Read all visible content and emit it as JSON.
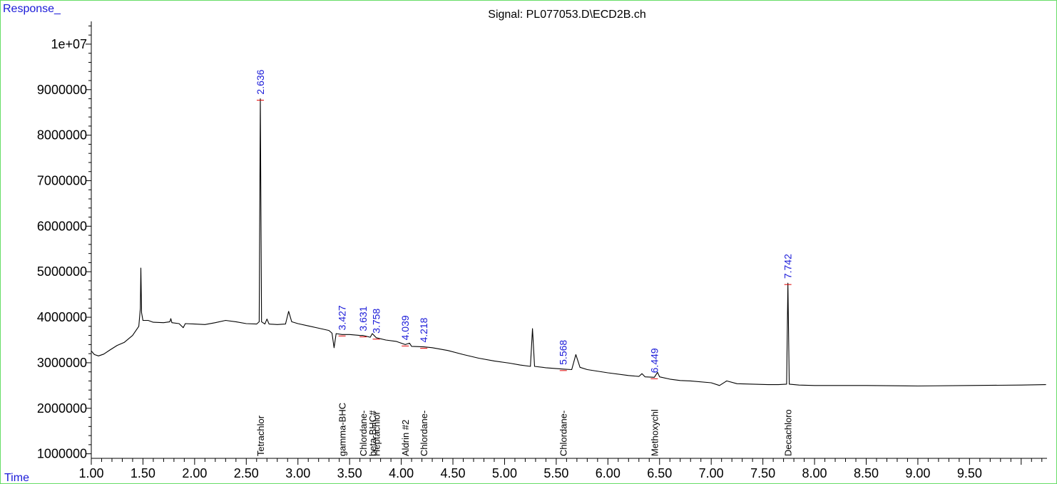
{
  "title": "Signal: PL077053.D\\ECD2B.ch",
  "chart_data": {
    "type": "line",
    "title": "Signal: PL077053.D\\ECD2B.ch",
    "ylabel": "Response_",
    "xlabel": "Time",
    "xlim": [
      1.0,
      10.25
    ],
    "ylim": [
      900000,
      10500000
    ],
    "x_ticks": [
      "1.00",
      "1.50",
      "2.00",
      "2.50",
      "3.00",
      "3.50",
      "4.00",
      "4.50",
      "5.00",
      "5.50",
      "6.00",
      "6.50",
      "7.00",
      "7.50",
      "8.00",
      "8.50",
      "9.00",
      "9.50"
    ],
    "y_ticks": [
      "1000000",
      "2000000",
      "3000000",
      "4000000",
      "5000000",
      "6000000",
      "7000000",
      "8000000",
      "9000000",
      "1e+07"
    ],
    "series": [
      {
        "points": [
          [
            1.0,
            3260000
          ],
          [
            1.03,
            3180000
          ],
          [
            1.07,
            3150000
          ],
          [
            1.12,
            3190000
          ],
          [
            1.18,
            3280000
          ],
          [
            1.25,
            3380000
          ],
          [
            1.32,
            3450000
          ],
          [
            1.4,
            3600000
          ],
          [
            1.46,
            3800000
          ],
          [
            1.475,
            4200000
          ],
          [
            1.48,
            5080000
          ],
          [
            1.487,
            4100000
          ],
          [
            1.5,
            3930000
          ],
          [
            1.55,
            3930000
          ],
          [
            1.6,
            3890000
          ],
          [
            1.7,
            3880000
          ],
          [
            1.76,
            3900000
          ],
          [
            1.77,
            3970000
          ],
          [
            1.78,
            3880000
          ],
          [
            1.85,
            3860000
          ],
          [
            1.89,
            3770000
          ],
          [
            1.91,
            3860000
          ],
          [
            2.0,
            3850000
          ],
          [
            2.1,
            3840000
          ],
          [
            2.2,
            3880000
          ],
          [
            2.3,
            3930000
          ],
          [
            2.4,
            3900000
          ],
          [
            2.5,
            3860000
          ],
          [
            2.6,
            3850000
          ],
          [
            2.625,
            3900000
          ],
          [
            2.636,
            8800000
          ],
          [
            2.648,
            3900000
          ],
          [
            2.68,
            3850000
          ],
          [
            2.7,
            3960000
          ],
          [
            2.72,
            3850000
          ],
          [
            2.8,
            3840000
          ],
          [
            2.88,
            3850000
          ],
          [
            2.91,
            4130000
          ],
          [
            2.94,
            3900000
          ],
          [
            3.0,
            3860000
          ],
          [
            3.1,
            3810000
          ],
          [
            3.2,
            3760000
          ],
          [
            3.3,
            3710000
          ],
          [
            3.33,
            3650000
          ],
          [
            3.35,
            3330000
          ],
          [
            3.37,
            3640000
          ],
          [
            3.427,
            3620000
          ],
          [
            3.5,
            3620000
          ],
          [
            3.6,
            3600000
          ],
          [
            3.631,
            3600000
          ],
          [
            3.7,
            3560000
          ],
          [
            3.72,
            3640000
          ],
          [
            3.758,
            3550000
          ],
          [
            3.85,
            3500000
          ],
          [
            3.95,
            3470000
          ],
          [
            4.039,
            3400000
          ],
          [
            4.08,
            3430000
          ],
          [
            4.1,
            3360000
          ],
          [
            4.218,
            3350000
          ],
          [
            4.3,
            3330000
          ],
          [
            4.45,
            3270000
          ],
          [
            4.6,
            3180000
          ],
          [
            4.75,
            3100000
          ],
          [
            4.9,
            3040000
          ],
          [
            5.05,
            2990000
          ],
          [
            5.15,
            2950000
          ],
          [
            5.25,
            2920000
          ],
          [
            5.27,
            3750000
          ],
          [
            5.29,
            2920000
          ],
          [
            5.4,
            2890000
          ],
          [
            5.568,
            2860000
          ],
          [
            5.65,
            2850000
          ],
          [
            5.69,
            3180000
          ],
          [
            5.73,
            2900000
          ],
          [
            5.8,
            2850000
          ],
          [
            6.0,
            2780000
          ],
          [
            6.2,
            2720000
          ],
          [
            6.3,
            2700000
          ],
          [
            6.33,
            2760000
          ],
          [
            6.36,
            2690000
          ],
          [
            6.449,
            2680000
          ],
          [
            6.48,
            2790000
          ],
          [
            6.5,
            2690000
          ],
          [
            6.6,
            2640000
          ],
          [
            6.7,
            2610000
          ],
          [
            6.8,
            2600000
          ],
          [
            7.0,
            2560000
          ],
          [
            7.08,
            2500000
          ],
          [
            7.15,
            2600000
          ],
          [
            7.25,
            2540000
          ],
          [
            7.4,
            2530000
          ],
          [
            7.55,
            2520000
          ],
          [
            7.65,
            2520000
          ],
          [
            7.73,
            2530000
          ],
          [
            7.742,
            4750000
          ],
          [
            7.755,
            2530000
          ],
          [
            7.85,
            2510000
          ],
          [
            8.0,
            2500000
          ],
          [
            8.5,
            2500000
          ],
          [
            9.0,
            2490000
          ],
          [
            9.5,
            2500000
          ],
          [
            10.0,
            2510000
          ],
          [
            10.24,
            2520000
          ]
        ]
      }
    ],
    "peaks": [
      {
        "rt": "2.636",
        "x": 2.636,
        "y": 8800000
      },
      {
        "rt": "3.427",
        "x": 3.427,
        "y": 3620000
      },
      {
        "rt": "3.631",
        "x": 3.631,
        "y": 3600000
      },
      {
        "rt": "3.758",
        "x": 3.758,
        "y": 3550000
      },
      {
        "rt": "4.039",
        "x": 4.039,
        "y": 3400000
      },
      {
        "rt": "4.218",
        "x": 4.218,
        "y": 3350000
      },
      {
        "rt": "5.568",
        "x": 5.568,
        "y": 2860000
      },
      {
        "rt": "6.449",
        "x": 6.449,
        "y": 2680000
      },
      {
        "rt": "7.742",
        "x": 7.742,
        "y": 4750000
      }
    ],
    "compounds": [
      {
        "name": "Tetrachlor",
        "x": 2.636
      },
      {
        "name": "gamma-BHC",
        "x": 3.427
      },
      {
        "name": "Chlordane-",
        "x": 3.631
      },
      {
        "name": "beta-BHC#",
        "x": 3.72
      },
      {
        "name": "Heptachlor",
        "x": 3.758
      },
      {
        "name": "Aldrin #2",
        "x": 4.039
      },
      {
        "name": "Chlordane-",
        "x": 4.218
      },
      {
        "name": "Chlordane-",
        "x": 5.568
      },
      {
        "name": "Methoxychl",
        "x": 6.449
      },
      {
        "name": "Decachloro",
        "x": 7.742
      }
    ],
    "colors": {
      "trace": "#000000",
      "peak_label": "#1a1ad8",
      "baseline_marker": "#e00000",
      "frame": "#66dd66"
    }
  }
}
